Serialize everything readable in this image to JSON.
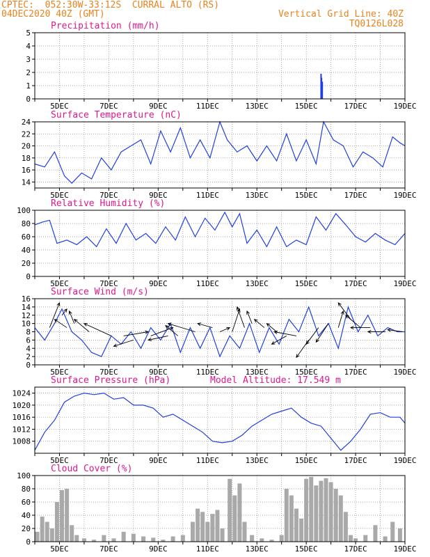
{
  "header": {
    "station": "CPTEC:  052:30W-33:12S  CURRAL ALTO (RS)",
    "date": "04DEC2020 40Z (GMT)",
    "grid": "Vertical Grid Line: 40Z",
    "code": "TQ0126L028"
  },
  "colors": {
    "header": "#e8821e",
    "title": "#e0188c",
    "line": "#1f3fe0",
    "cloud": "#a9a9a9"
  },
  "chart_data": [
    {
      "type": "bar",
      "title": "Precipitation (mm/h)",
      "ylim": [
        0,
        5
      ],
      "yticks": [
        0,
        1,
        2,
        3,
        4,
        5
      ],
      "xlim": [
        4,
        19
      ],
      "xticks": [
        "5DEC",
        "7DEC",
        "9DEC",
        "11DEC",
        "13DEC",
        "15DEC",
        "17DEC",
        "19DEC"
      ],
      "x": [
        15.6,
        15.62,
        15.65
      ],
      "values": [
        1.9,
        1.6,
        1.3
      ]
    },
    {
      "type": "line",
      "title": "Surface Temperature (nC)",
      "ylim": [
        13,
        24
      ],
      "yticks": [
        14,
        16,
        18,
        20,
        22,
        24
      ],
      "xlim": [
        4,
        19
      ],
      "xticks": [
        "5DEC",
        "7DEC",
        "9DEC",
        "11DEC",
        "13DEC",
        "15DEC",
        "17DEC",
        "19DEC"
      ],
      "x": [
        4,
        4.4,
        4.8,
        5.2,
        5.5,
        5.9,
        6.3,
        6.7,
        7.1,
        7.5,
        7.9,
        8.3,
        8.7,
        9.1,
        9.5,
        9.9,
        10.3,
        10.7,
        11.1,
        11.5,
        11.8,
        12.2,
        12.6,
        13.0,
        13.4,
        13.8,
        14.2,
        14.6,
        15.0,
        15.4,
        15.7,
        16.1,
        16.5,
        16.9,
        17.3,
        17.7,
        18.1,
        18.5,
        18.8,
        19
      ],
      "y": [
        17,
        16.5,
        19,
        15,
        13.8,
        15.5,
        14.5,
        18,
        16,
        19,
        20,
        21,
        17,
        22.5,
        19,
        23,
        18,
        21,
        18,
        24,
        21,
        19,
        20,
        17.5,
        20,
        17.5,
        22,
        17.5,
        21,
        17,
        24,
        21,
        20,
        16.5,
        19,
        18,
        16.5,
        21.5,
        20.5,
        20
      ]
    },
    {
      "type": "line",
      "title": "Relative Humidity (%)",
      "ylim": [
        0,
        100
      ],
      "yticks": [
        0,
        20,
        40,
        60,
        80,
        100
      ],
      "xlim": [
        4,
        19
      ],
      "xticks": [
        "5DEC",
        "7DEC",
        "9DEC",
        "11DEC",
        "13DEC",
        "15DEC",
        "17DEC",
        "19DEC"
      ],
      "x": [
        4,
        4.3,
        4.6,
        4.9,
        5.3,
        5.7,
        6.1,
        6.5,
        6.9,
        7.3,
        7.7,
        8.1,
        8.5,
        8.9,
        9.3,
        9.7,
        10.1,
        10.5,
        10.9,
        11.3,
        11.7,
        12.0,
        12.3,
        12.6,
        13.0,
        13.4,
        13.8,
        14.2,
        14.6,
        15.0,
        15.4,
        15.8,
        16.2,
        16.6,
        17.0,
        17.4,
        17.8,
        18.2,
        18.6,
        19
      ],
      "y": [
        78,
        82,
        85,
        50,
        55,
        48,
        60,
        45,
        72,
        50,
        80,
        55,
        65,
        50,
        75,
        55,
        90,
        60,
        88,
        70,
        97,
        75,
        95,
        50,
        70,
        45,
        75,
        45,
        55,
        48,
        90,
        70,
        95,
        78,
        60,
        52,
        65,
        55,
        48,
        65
      ]
    },
    {
      "type": "line",
      "title": "Surface Wind (m/s)",
      "ylim": [
        0,
        16
      ],
      "yticks": [
        0,
        2,
        4,
        6,
        8,
        10,
        12,
        14,
        16
      ],
      "xlim": [
        4,
        19
      ],
      "xticks": [
        "5DEC",
        "7DEC",
        "9DEC",
        "11DEC",
        "13DEC",
        "15DEC",
        "17DEC",
        "19DEC"
      ],
      "x": [
        4,
        4.4,
        4.8,
        5.1,
        5.5,
        5.9,
        6.3,
        6.7,
        7.1,
        7.5,
        7.9,
        8.3,
        8.7,
        9.1,
        9.5,
        9.9,
        10.3,
        10.7,
        11.1,
        11.5,
        11.9,
        12.3,
        12.7,
        13.1,
        13.5,
        13.9,
        14.3,
        14.7,
        15.1,
        15.5,
        15.9,
        16.3,
        16.7,
        17.1,
        17.5,
        17.9,
        18.3,
        18.7,
        19
      ],
      "y": [
        9,
        6,
        10,
        13.5,
        8,
        6,
        3,
        2,
        7,
        5,
        8,
        4,
        9,
        6,
        10,
        3,
        9,
        4,
        9,
        2,
        7,
        4,
        10,
        3,
        9,
        5,
        11,
        8,
        14,
        7,
        10,
        4,
        14,
        8,
        12,
        7,
        9,
        8,
        8
      ],
      "arrows": [
        [
          4.6,
          9,
          5.0,
          15
        ],
        [
          5.1,
          12,
          5.3,
          13.5
        ],
        [
          5.3,
          9,
          4.8,
          11
        ],
        [
          5.6,
          10,
          5.4,
          13
        ],
        [
          6.2,
          8,
          5.6,
          11
        ],
        [
          7.1,
          7,
          6.0,
          10
        ],
        [
          7.6,
          7,
          8.6,
          8
        ],
        [
          8.0,
          6,
          7.2,
          4.5
        ],
        [
          8.7,
          7,
          9.6,
          9
        ],
        [
          9.4,
          7,
          8.6,
          6
        ],
        [
          9.8,
          7,
          9.3,
          9.5
        ],
        [
          10.5,
          8,
          9.4,
          10
        ],
        [
          11.2,
          9,
          10.6,
          10
        ],
        [
          11.5,
          8,
          11.9,
          9
        ],
        [
          12.0,
          8,
          12.3,
          13.5
        ],
        [
          12.5,
          9,
          12.2,
          14
        ],
        [
          12.8,
          10,
          12.6,
          13
        ],
        [
          13.3,
          9,
          12.9,
          11
        ],
        [
          13.8,
          8,
          13.4,
          10
        ],
        [
          14.2,
          7,
          13.6,
          5
        ],
        [
          14.6,
          7,
          13.7,
          8
        ],
        [
          15.1,
          6,
          14.6,
          1.8
        ],
        [
          15.5,
          9,
          15.0,
          5
        ],
        [
          15.9,
          10,
          15.4,
          5.5
        ],
        [
          16.3,
          9,
          16.5,
          13
        ],
        [
          16.8,
          11,
          16.3,
          15
        ],
        [
          17.2,
          9,
          16.6,
          12
        ],
        [
          17.6,
          9,
          16.8,
          9
        ],
        [
          18.2,
          8,
          17.5,
          8
        ],
        [
          18.9,
          8,
          18.3,
          8.5
        ]
      ]
    },
    {
      "type": "line",
      "title": "Surface Pressure (hPa)",
      "annotation": "Model Altitude: 17.549  m",
      "ylim": [
        1004,
        1026
      ],
      "yticks": [
        1008,
        1012,
        1016,
        1020,
        1024
      ],
      "xlim": [
        4,
        19
      ],
      "xticks": [
        "5DEC",
        "7DEC",
        "9DEC",
        "11DEC",
        "13DEC",
        "15DEC",
        "17DEC",
        "19DEC"
      ],
      "x": [
        4,
        4.4,
        4.8,
        5.2,
        5.6,
        6.0,
        6.4,
        6.8,
        7.2,
        7.6,
        8.0,
        8.4,
        8.8,
        9.2,
        9.6,
        10.0,
        10.4,
        10.8,
        11.2,
        11.6,
        12.0,
        12.4,
        12.8,
        13.2,
        13.6,
        14.0,
        14.4,
        14.8,
        15.2,
        15.6,
        16.0,
        16.4,
        16.8,
        17.2,
        17.6,
        18.0,
        18.4,
        18.8,
        19
      ],
      "y": [
        1005,
        1011,
        1015,
        1021,
        1023,
        1024,
        1023.5,
        1024,
        1022,
        1022.5,
        1020,
        1020,
        1019,
        1016,
        1017,
        1015,
        1013,
        1011,
        1008,
        1007.5,
        1008,
        1010,
        1013,
        1015,
        1017,
        1018,
        1019,
        1016,
        1014,
        1013,
        1009,
        1005,
        1008,
        1012,
        1017,
        1017.5,
        1016,
        1016,
        1014
      ]
    },
    {
      "type": "bar",
      "title": "Cloud Cover (%)",
      "ylim": [
        0,
        100
      ],
      "yticks": [
        0,
        20,
        40,
        60,
        80,
        100
      ],
      "xlim": [
        4,
        19
      ],
      "xticks": [
        "5DEC",
        "7DEC",
        "9DEC",
        "11DEC",
        "13DEC",
        "15DEC",
        "17DEC",
        "19DEC"
      ],
      "x": [
        4.1,
        4.3,
        4.5,
        4.7,
        4.9,
        5.1,
        5.3,
        5.5,
        5.7,
        6.0,
        6.4,
        6.8,
        7.2,
        7.6,
        8.0,
        8.4,
        8.8,
        9.2,
        9.6,
        10.0,
        10.4,
        10.6,
        10.8,
        11.0,
        11.2,
        11.4,
        11.6,
        11.9,
        12.1,
        12.3,
        12.5,
        12.8,
        13.2,
        13.6,
        14.0,
        14.2,
        14.4,
        14.6,
        14.8,
        15.0,
        15.2,
        15.4,
        15.6,
        15.8,
        16.0,
        16.2,
        16.4,
        16.6,
        16.8,
        17.0,
        17.4,
        17.8,
        18.2,
        18.5,
        18.8
      ],
      "values": [
        15,
        38,
        30,
        20,
        60,
        78,
        80,
        25,
        10,
        5,
        3,
        10,
        5,
        15,
        12,
        8,
        6,
        3,
        8,
        10,
        30,
        50,
        45,
        30,
        42,
        48,
        20,
        95,
        70,
        88,
        30,
        10,
        5,
        3,
        10,
        80,
        70,
        50,
        35,
        95,
        98,
        85,
        92,
        96,
        90,
        80,
        70,
        45,
        10,
        5,
        10,
        25,
        8,
        30,
        20
      ]
    }
  ]
}
